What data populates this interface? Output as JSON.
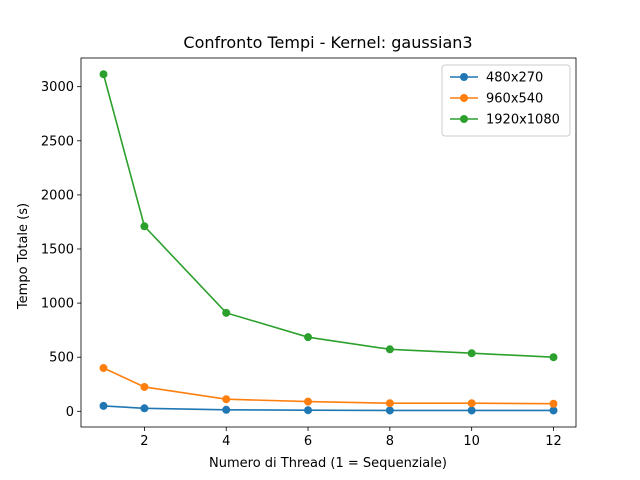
{
  "chart_data": {
    "type": "line",
    "title": "Confronto Tempi - Kernel: gaussian3",
    "xlabel": "Numero di Thread (1 = Sequenziale)",
    "ylabel": "Tempo Totale (s)",
    "x": [
      1,
      2,
      4,
      6,
      8,
      10,
      12
    ],
    "xlim": [
      0.45,
      12.55
    ],
    "ylim": [
      -145,
      3265
    ],
    "xticks": [
      2,
      4,
      6,
      8,
      10,
      12
    ],
    "yticks": [
      0,
      500,
      1000,
      1500,
      2000,
      2500,
      3000
    ],
    "grid": false,
    "legend_position": "top-right",
    "series": [
      {
        "name": "480x270",
        "color": "#1f77b4",
        "values": [
          50,
          28,
          14,
          10,
          8,
          8,
          8
        ]
      },
      {
        "name": "960x540",
        "color": "#ff7f0e",
        "values": [
          400,
          225,
          112,
          90,
          75,
          75,
          70
        ]
      },
      {
        "name": "1920x1080",
        "color": "#2ca02c",
        "values": [
          3115,
          1710,
          910,
          685,
          573,
          537,
          500
        ]
      }
    ]
  }
}
